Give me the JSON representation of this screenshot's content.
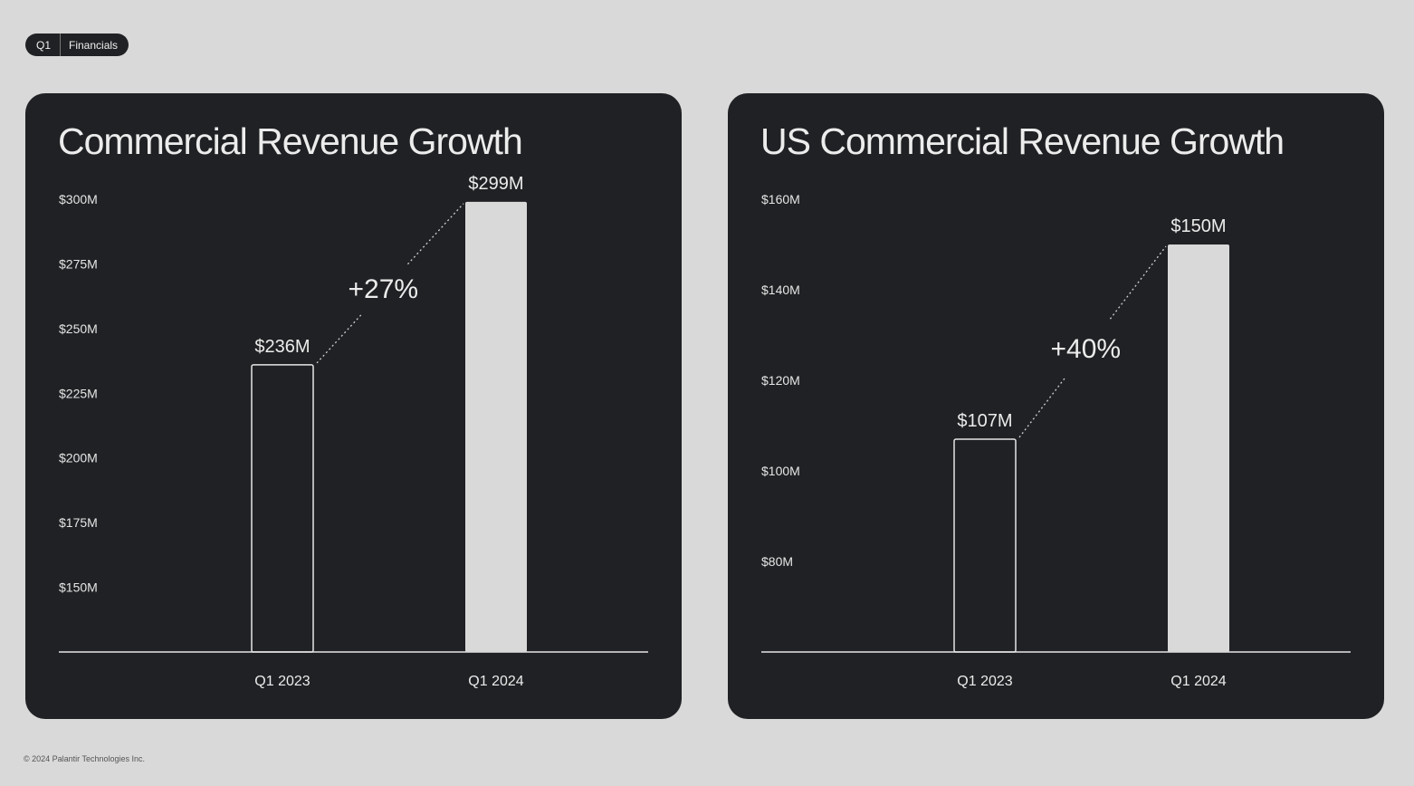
{
  "header": {
    "quarter_label": "Q1",
    "section_label": "Financials"
  },
  "footer": {
    "copyright": "© 2024 Palantir Technologies Inc."
  },
  "colors": {
    "background": "#d9d9d9",
    "panel": "#202124",
    "text": "#ececec",
    "bar_fill": "#d9d9d9",
    "bar_outline": "#e6e6e6"
  },
  "chart_data": [
    {
      "type": "bar",
      "title": "Commercial Revenue Growth",
      "categories": [
        "Q1 2023",
        "Q1 2024"
      ],
      "values": [
        236,
        299
      ],
      "value_labels": [
        "$236M",
        "$299M"
      ],
      "y_ticks": [
        150,
        175,
        200,
        225,
        250,
        275,
        300
      ],
      "y_tick_labels": [
        "$150M",
        "$175M",
        "$200M",
        "$225M",
        "$250M",
        "$275M",
        "$300M"
      ],
      "ylim": [
        125,
        300
      ],
      "growth_label": "+27%",
      "xlabel": "",
      "ylabel": "",
      "grid": false
    },
    {
      "type": "bar",
      "title": "US Commercial Revenue Growth",
      "categories": [
        "Q1 2023",
        "Q1 2024"
      ],
      "values": [
        107,
        150
      ],
      "value_labels": [
        "$107M",
        "$150M"
      ],
      "y_ticks": [
        80,
        100,
        120,
        140,
        160
      ],
      "y_tick_labels": [
        "$80M",
        "$100M",
        "$120M",
        "$140M",
        "$160M"
      ],
      "ylim": [
        60,
        160
      ],
      "growth_label": "+40%",
      "xlabel": "",
      "ylabel": "",
      "grid": false
    }
  ]
}
